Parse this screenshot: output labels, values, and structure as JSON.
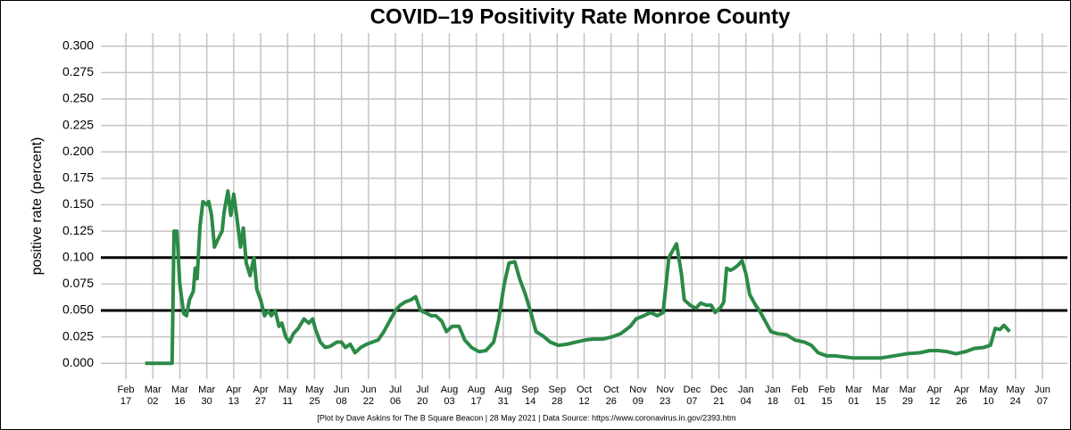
{
  "chart_data": {
    "type": "line",
    "title": "COVID–19 Positivity Rate Monroe County",
    "y_label": "positive rate (percent)",
    "footnote": "[Plot by Dave Askins for The B Square Beacon | 28 May 2021 | Data Source: https://www.coronavirus.in.gov/2393.htm",
    "xlim": [
      -13,
      489
    ],
    "ylim": [
      -0.015,
      0.3125
    ],
    "grid": true,
    "reference_lines": [
      0.05,
      0.1
    ],
    "xticks": [
      {
        "value": 0,
        "label": "Feb 17"
      },
      {
        "value": 14,
        "label": "Mar 02"
      },
      {
        "value": 28,
        "label": "Mar 16"
      },
      {
        "value": 42,
        "label": "Mar 30"
      },
      {
        "value": 56,
        "label": "Apr 13"
      },
      {
        "value": 70,
        "label": "Apr 27"
      },
      {
        "value": 84,
        "label": "May 11"
      },
      {
        "value": 98,
        "label": "May 25"
      },
      {
        "value": 112,
        "label": "Jun 08"
      },
      {
        "value": 126,
        "label": "Jun 22"
      },
      {
        "value": 140,
        "label": "Jul 06"
      },
      {
        "value": 154,
        "label": "Jul 20"
      },
      {
        "value": 168,
        "label": "Aug 03"
      },
      {
        "value": 182,
        "label": "Aug 17"
      },
      {
        "value": 196,
        "label": "Aug 31"
      },
      {
        "value": 210,
        "label": "Sep 14"
      },
      {
        "value": 224,
        "label": "Sep 28"
      },
      {
        "value": 238,
        "label": "Oct 12"
      },
      {
        "value": 252,
        "label": "Oct 26"
      },
      {
        "value": 266,
        "label": "Nov 09"
      },
      {
        "value": 280,
        "label": "Nov 23"
      },
      {
        "value": 294,
        "label": "Dec 07"
      },
      {
        "value": 308,
        "label": "Dec 21"
      },
      {
        "value": 322,
        "label": "Jan 04"
      },
      {
        "value": 336,
        "label": "Jan 18"
      },
      {
        "value": 350,
        "label": "Feb 01"
      },
      {
        "value": 364,
        "label": "Feb 15"
      },
      {
        "value": 378,
        "label": "Mar 01"
      },
      {
        "value": 392,
        "label": "Mar 15"
      },
      {
        "value": 406,
        "label": "Mar 29"
      },
      {
        "value": 420,
        "label": "Apr 12"
      },
      {
        "value": 434,
        "label": "Apr 26"
      },
      {
        "value": 448,
        "label": "May 10"
      },
      {
        "value": 462,
        "label": "May 24"
      },
      {
        "value": 476,
        "label": "Jun 07"
      }
    ],
    "yticks": [
      {
        "value": 0,
        "label": "0.000"
      },
      {
        "value": 0.025,
        "label": "0.025"
      },
      {
        "value": 0.05,
        "label": "0.050"
      },
      {
        "value": 0.075,
        "label": "0.075"
      },
      {
        "value": 0.1,
        "label": "0.100"
      },
      {
        "value": 0.125,
        "label": "0.125"
      },
      {
        "value": 0.15,
        "label": "0.150"
      },
      {
        "value": 0.175,
        "label": "0.175"
      },
      {
        "value": 0.2,
        "label": "0.200"
      },
      {
        "value": 0.225,
        "label": "0.225"
      },
      {
        "value": 0.25,
        "label": "0.250"
      },
      {
        "value": 0.275,
        "label": "0.275"
      },
      {
        "value": 0.3,
        "label": "0.300"
      }
    ],
    "color": "#2b8a47",
    "x": [
      10,
      24,
      25,
      26.5,
      28,
      30,
      31.5,
      33,
      35,
      36,
      37,
      38.5,
      40,
      42,
      43,
      44.5,
      46,
      48,
      50,
      51,
      53,
      54.5,
      56,
      57.5,
      59.5,
      61,
      62.5,
      64.5,
      66.5,
      68,
      70,
      72,
      74,
      75.5,
      77.5,
      79.5,
      81,
      83,
      85,
      87,
      89.5,
      92.5,
      95,
      97,
      98.5,
      101,
      103.5,
      106,
      109.5,
      112,
      114,
      116.5,
      119,
      122,
      125,
      128,
      131,
      134,
      137,
      140,
      142.5,
      145,
      148,
      150.5,
      153,
      155.5,
      158.5,
      161,
      164,
      166.5,
      169.5,
      173,
      176,
      179.5,
      183.5,
      187,
      191,
      193.5,
      196.5,
      199,
      202,
      204.5,
      207.5,
      210,
      213,
      216.5,
      220.5,
      224.5,
      229,
      233.5,
      238.5,
      243,
      248,
      252.5,
      257,
      262,
      265,
      269,
      272.5,
      276,
      279,
      282,
      283.5,
      286,
      288.5,
      290,
      293,
      296,
      298.5,
      301.5,
      304,
      306,
      309,
      310.5,
      312,
      314,
      316,
      318,
      320,
      322,
      324,
      327,
      329,
      332,
      335,
      338.5,
      343,
      347.5,
      352.5,
      356,
      359.5,
      364,
      368.5,
      373,
      378,
      385,
      392,
      399,
      405.5,
      412.5,
      417.5,
      422,
      426.5,
      431,
      436,
      440.5,
      445.5,
      449,
      451.5,
      454,
      456,
      459
    ],
    "values": [
      0,
      0,
      0.125,
      0.125,
      0.075,
      0.047,
      0.045,
      0.06,
      0.068,
      0.09,
      0.08,
      0.13,
      0.153,
      0.15,
      0.153,
      0.14,
      0.11,
      0.118,
      0.125,
      0.143,
      0.163,
      0.14,
      0.16,
      0.14,
      0.11,
      0.128,
      0.095,
      0.083,
      0.1,
      0.07,
      0.06,
      0.045,
      0.05,
      0.045,
      0.05,
      0.035,
      0.038,
      0.025,
      0.02,
      0.028,
      0.033,
      0.042,
      0.038,
      0.042,
      0.032,
      0.02,
      0.015,
      0.016,
      0.02,
      0.02,
      0.015,
      0.018,
      0.01,
      0.015,
      0.018,
      0.02,
      0.022,
      0.03,
      0.04,
      0.05,
      0.055,
      0.058,
      0.06,
      0.063,
      0.05,
      0.048,
      0.045,
      0.045,
      0.04,
      0.03,
      0.035,
      0.035,
      0.022,
      0.015,
      0.011,
      0.012,
      0.02,
      0.04,
      0.075,
      0.095,
      0.096,
      0.08,
      0.065,
      0.05,
      0.03,
      0.026,
      0.02,
      0.017,
      0.018,
      0.02,
      0.022,
      0.023,
      0.023,
      0.025,
      0.028,
      0.035,
      0.042,
      0.045,
      0.048,
      0.045,
      0.048,
      0.1,
      0.105,
      0.113,
      0.085,
      0.06,
      0.055,
      0.052,
      0.057,
      0.055,
      0.055,
      0.048,
      0.053,
      0.058,
      0.09,
      0.088,
      0.09,
      0.093,
      0.097,
      0.085,
      0.065,
      0.055,
      0.05,
      0.04,
      0.03,
      0.028,
      0.027,
      0.022,
      0.02,
      0.017,
      0.01,
      0.007,
      0.007,
      0.006,
      0.005,
      0.005,
      0.005,
      0.007,
      0.009,
      0.01,
      0.012,
      0.012,
      0.011,
      0.009,
      0.011,
      0.014,
      0.015,
      0.017,
      0.033,
      0.032,
      0.036,
      0.03
    ]
  }
}
